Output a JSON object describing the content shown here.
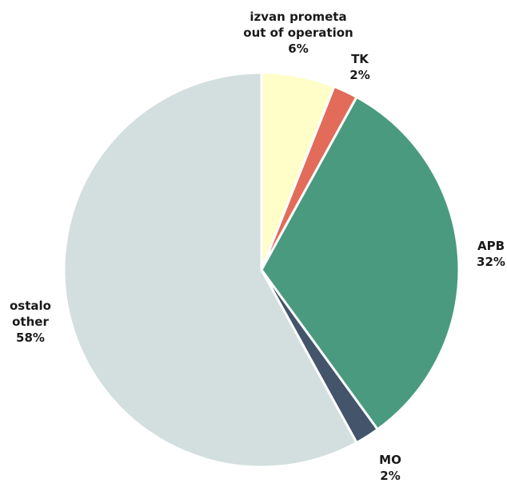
{
  "chart_data": {
    "type": "pie",
    "start_angle_deg": 0,
    "direction": "clockwise",
    "slice_border_color": "#ffffff",
    "slices": [
      {
        "key": "izvan",
        "lines": [
          "izvan prometa",
          "out of operation",
          "6%"
        ],
        "value": 6,
        "color": "#FFFDC8"
      },
      {
        "key": "tk",
        "lines": [
          "TK",
          "2%"
        ],
        "value": 2,
        "color": "#E26B5A"
      },
      {
        "key": "apb",
        "lines": [
          "APB",
          "32%"
        ],
        "value": 32,
        "color": "#4A9A80"
      },
      {
        "key": "mo",
        "lines": [
          "MO",
          "2%"
        ],
        "value": 2,
        "color": "#44546A"
      },
      {
        "key": "ostalo",
        "lines": [
          "ostalo",
          "other",
          "58%"
        ],
        "value": 58,
        "color": "#D3DFDE"
      }
    ]
  }
}
